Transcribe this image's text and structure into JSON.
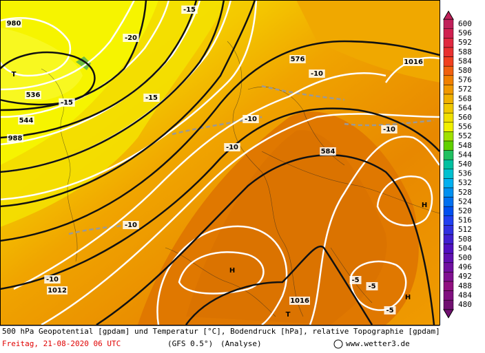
{
  "map": {
    "labels": [
      "T",
      "T",
      "H",
      "H",
      "H",
      "576",
      "584",
      "1016",
      "1016",
      "1012",
      "980",
      "988",
      "536",
      "544",
      "-10",
      "-10",
      "-10",
      "-10",
      "-10",
      "-10",
      "-15",
      "-15",
      "-15",
      "-20",
      "-5",
      "-5",
      "-5"
    ]
  },
  "colorbar": {
    "labels": [
      "600",
      "596",
      "592",
      "588",
      "584",
      "580",
      "576",
      "572",
      "568",
      "564",
      "560",
      "556",
      "552",
      "548",
      "544",
      "540",
      "536",
      "532",
      "528",
      "524",
      "520",
      "516",
      "512",
      "508",
      "504",
      "500",
      "496",
      "492",
      "488",
      "484",
      "480"
    ],
    "colors": [
      "#c0205a",
      "#d02050",
      "#e02840",
      "#e83030",
      "#f04020",
      "#f06010",
      "#f08000",
      "#f09800",
      "#f0b000",
      "#f0c800",
      "#f0e000",
      "#f0f000",
      "#a0e000",
      "#60d000",
      "#20c060",
      "#00c0a0",
      "#00c0d0",
      "#00b0f0",
      "#0090f0",
      "#0070f0",
      "#0050f0",
      "#2040f0",
      "#3030e0",
      "#4020d0",
      "#5010c0",
      "#6010b0",
      "#7010a0",
      "#801090",
      "#901080",
      "#801080",
      "#701070"
    ]
  },
  "footer": {
    "description": "500 hPa Geopotential [gpdam] und Temperatur [°C], Bodendruck [hPa], relative Topographie [gpdam]",
    "date": "Freitag, 21-08-2020  06 UTC",
    "model": "(GFS 0.5°)",
    "analysis": "(Analyse)",
    "credit": "www.wetter3.de"
  }
}
